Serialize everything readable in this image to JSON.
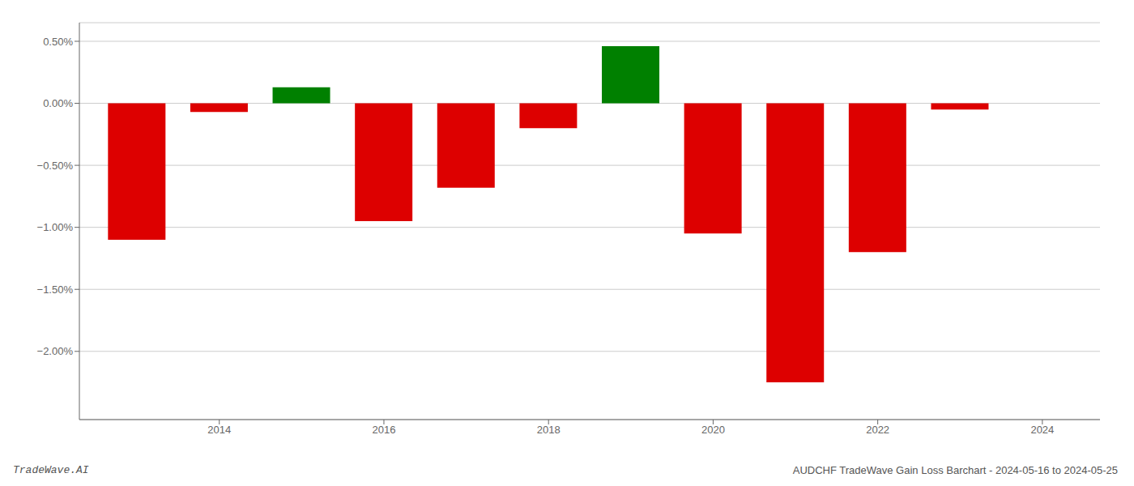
{
  "chart_data": {
    "type": "bar",
    "x": [
      2013,
      2014,
      2015,
      2016,
      2017,
      2018,
      2019,
      2020,
      2021,
      2022,
      2023
    ],
    "values": [
      -1.1,
      -0.07,
      0.13,
      -0.95,
      -0.68,
      -0.2,
      0.46,
      -1.05,
      -2.25,
      -1.2,
      -0.05
    ],
    "colors": [
      "#dd0000",
      "#dd0000",
      "#008000",
      "#dd0000",
      "#dd0000",
      "#dd0000",
      "#008000",
      "#dd0000",
      "#dd0000",
      "#dd0000",
      "#dd0000"
    ],
    "xlim": [
      2012.3,
      2024.7
    ],
    "xticks": [
      2014,
      2016,
      2018,
      2020,
      2022,
      2024
    ],
    "ylim": [
      -2.55,
      0.65
    ],
    "yticks": [
      {
        "value": 0.5,
        "label": "0.50%"
      },
      {
        "value": 0,
        "label": "0.00%"
      },
      {
        "value": -0.5,
        "label": "−0.50%"
      },
      {
        "value": -1,
        "label": "−1.00%"
      },
      {
        "value": -1.5,
        "label": "−1.50%"
      },
      {
        "value": -2,
        "label": "−2.00%"
      }
    ],
    "grid": true,
    "annotations": [
      "TradeWave.AI",
      "AUDCHF TradeWave Gain Loss Barchart - 2024-05-16 to 2024-05-25"
    ]
  }
}
